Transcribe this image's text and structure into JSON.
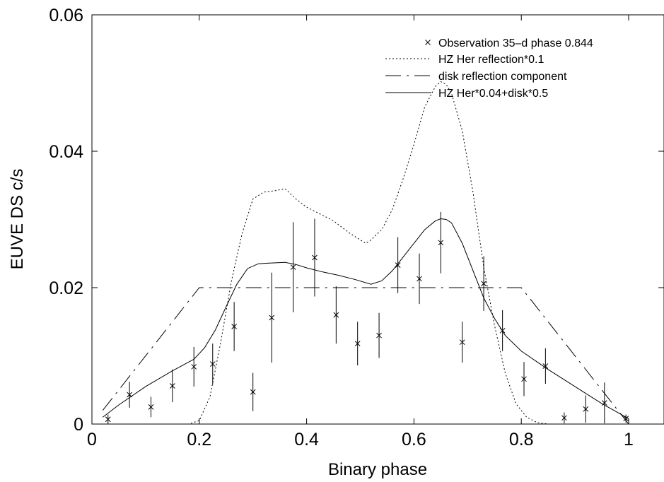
{
  "chart_data": {
    "type": "line",
    "title": "",
    "xlabel": "Binary phase",
    "ylabel": "EUVE DS c/s",
    "xlim": [
      0,
      1.18
    ],
    "ylim": [
      0,
      0.06
    ],
    "xticks": [
      0,
      0.2,
      0.4,
      0.6,
      0.8,
      1
    ],
    "xtick_labels": [
      "0",
      "0.2",
      "0.4",
      "0.6",
      "0.8",
      "1"
    ],
    "yticks": [
      0,
      0.02,
      0.04,
      0.06
    ],
    "ytick_labels": [
      "0",
      "0.02",
      "0.04",
      "0.06"
    ],
    "grid": false,
    "legend_position": "top-right",
    "series": [
      {
        "name": "Observation 35–d phase 0.844",
        "style": "points-errorbars",
        "color": "#000000",
        "x": [
          0.03,
          0.07,
          0.11,
          0.15,
          0.19,
          0.225,
          0.265,
          0.3,
          0.335,
          0.375,
          0.415,
          0.455,
          0.495,
          0.535,
          0.57,
          0.61,
          0.65,
          0.69,
          0.73,
          0.765,
          0.805,
          0.845,
          0.88,
          0.92,
          0.955,
          0.995
        ],
        "y": [
          0.0007,
          0.0043,
          0.0025,
          0.0056,
          0.0084,
          0.0088,
          0.0143,
          0.0047,
          0.0156,
          0.023,
          0.0244,
          0.016,
          0.0118,
          0.013,
          0.0233,
          0.0213,
          0.0266,
          0.012,
          0.0206,
          0.0137,
          0.0066,
          0.0085,
          0.0009,
          0.0022,
          0.0031,
          0.0008
        ],
        "yerr": [
          0.0007,
          0.0019,
          0.0015,
          0.0024,
          0.0029,
          0.003,
          0.0036,
          0.0028,
          0.0066,
          0.0066,
          0.0057,
          0.0042,
          0.0032,
          0.0033,
          0.0041,
          0.0037,
          0.0045,
          0.003,
          0.004,
          0.003,
          0.0025,
          0.0026,
          0.0008,
          0.002,
          0.003,
          0.0006
        ]
      },
      {
        "name": "HZ Her reflection*0.1",
        "style": "dotted",
        "color": "#000000",
        "x": [
          0.02,
          0.05,
          0.1,
          0.15,
          0.18,
          0.2,
          0.22,
          0.24,
          0.26,
          0.28,
          0.3,
          0.32,
          0.34,
          0.36,
          0.38,
          0.4,
          0.42,
          0.45,
          0.48,
          0.51,
          0.52,
          0.54,
          0.56,
          0.58,
          0.6,
          0.62,
          0.64,
          0.65,
          0.66,
          0.67,
          0.69,
          0.71,
          0.73,
          0.75,
          0.77,
          0.79,
          0.81,
          0.83,
          0.85,
          0.9,
          1.0
        ],
        "y": [
          0,
          0,
          0,
          0,
          0,
          0.0005,
          0.004,
          0.012,
          0.021,
          0.028,
          0.033,
          0.034,
          0.0342,
          0.0345,
          0.033,
          0.0318,
          0.031,
          0.0298,
          0.028,
          0.0265,
          0.027,
          0.0285,
          0.0315,
          0.036,
          0.041,
          0.0465,
          0.0495,
          0.0502,
          0.0498,
          0.0485,
          0.043,
          0.034,
          0.023,
          0.0145,
          0.0075,
          0.003,
          0.001,
          0.0002,
          0,
          0,
          0
        ]
      },
      {
        "name": "disk reflection component",
        "style": "dash-dot",
        "color": "#000000",
        "x": [
          0.02,
          0.2,
          0.8,
          1.0
        ],
        "y": [
          0.002,
          0.02,
          0.02,
          0.0
        ]
      },
      {
        "name": "HZ Her*0.04+disk*0.5",
        "style": "solid",
        "color": "#000000",
        "x": [
          0.02,
          0.05,
          0.1,
          0.15,
          0.19,
          0.21,
          0.23,
          0.25,
          0.27,
          0.29,
          0.31,
          0.33,
          0.36,
          0.38,
          0.4,
          0.43,
          0.46,
          0.49,
          0.52,
          0.54,
          0.56,
          0.58,
          0.6,
          0.62,
          0.64,
          0.65,
          0.66,
          0.67,
          0.69,
          0.71,
          0.73,
          0.75,
          0.77,
          0.8,
          0.85,
          0.9,
          0.95,
          1.0
        ],
        "y": [
          0.001,
          0.0028,
          0.0055,
          0.0078,
          0.0095,
          0.0112,
          0.0138,
          0.0172,
          0.0205,
          0.0228,
          0.0235,
          0.0236,
          0.0237,
          0.0234,
          0.0229,
          0.0223,
          0.0218,
          0.0212,
          0.0205,
          0.021,
          0.0225,
          0.0245,
          0.0265,
          0.0285,
          0.0298,
          0.0301,
          0.03,
          0.0295,
          0.0265,
          0.0225,
          0.0185,
          0.0155,
          0.013,
          0.0107,
          0.008,
          0.0055,
          0.003,
          0.0008
        ]
      }
    ]
  }
}
